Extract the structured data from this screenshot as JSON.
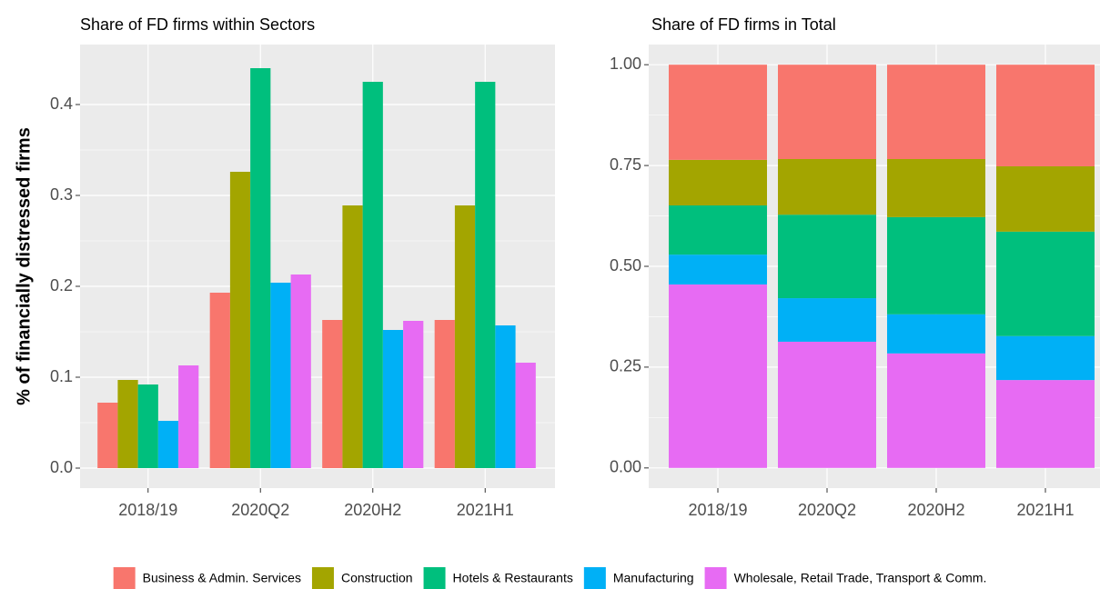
{
  "chart_data": [
    {
      "type": "bar",
      "title": "Share of FD firms within Sectors",
      "y_label": "% of financially distressed firms",
      "categories": [
        "2018/19",
        "2020Q2",
        "2020H2",
        "2021H1"
      ],
      "series": [
        {
          "name": "Business & Admin. Services",
          "color": "#f8766d",
          "values": [
            0.072,
            0.193,
            0.163,
            0.163
          ]
        },
        {
          "name": "Construction",
          "color": "#a3a500",
          "values": [
            0.097,
            0.326,
            0.289,
            0.289
          ]
        },
        {
          "name": "Hotels & Restaurants",
          "color": "#00bf7d",
          "values": [
            0.092,
            0.44,
            0.425,
            0.425
          ]
        },
        {
          "name": "Manufacturing",
          "color": "#00b0f6",
          "values": [
            0.052,
            0.204,
            0.152,
            0.157
          ]
        },
        {
          "name": "Wholesale, Retail Trade, Transport & Comm.",
          "color": "#e76bf3",
          "values": [
            0.113,
            0.213,
            0.162,
            0.116
          ]
        }
      ],
      "ylim": [
        -0.022,
        0.466
      ],
      "yticks": [
        {
          "value": 0,
          "label": "0.0"
        },
        0.1,
        0.2,
        0.3,
        0.4
      ],
      "grid": true,
      "legend": "bottom"
    },
    {
      "type": "stacked_bar",
      "title": "Share of FD firms in Total",
      "categories": [
        "2018/19",
        "2020Q2",
        "2020H2",
        "2021H1"
      ],
      "series": [
        {
          "values": [
            0.236,
            0.234,
            0.234,
            0.252
          ]
        },
        {
          "values": [
            0.113,
            0.138,
            0.144,
            0.162
          ]
        },
        {
          "values": [
            0.122,
            0.207,
            0.241,
            0.259
          ]
        },
        {
          "values": [
            0.074,
            0.108,
            0.097,
            0.109
          ]
        },
        {
          "values": [
            0.455,
            0.313,
            0.284,
            0.218
          ]
        }
      ],
      "ylim": [
        -0.05,
        1.05
      ],
      "yticks": [
        {
          "value": 0,
          "label": "0.00"
        },
        0.25,
        {
          "value": 0.5,
          "label": "0.50"
        },
        0.75,
        {
          "value": 1,
          "label": "1.00"
        }
      ],
      "grid": true
    }
  ]
}
